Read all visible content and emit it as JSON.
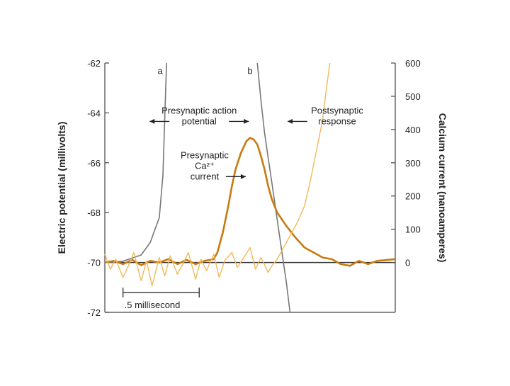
{
  "chart_data": {
    "type": "line",
    "left_axis": {
      "label": "Electric potential (millivolts)",
      "ylim": [
        -72,
        -62
      ],
      "ticks": [
        "-62",
        "-64",
        "-66",
        "-68",
        "-70",
        "-72"
      ]
    },
    "right_axis": {
      "label": "Calcium current (nanoamperes)",
      "ylim": [
        -150,
        600
      ],
      "ticks": [
        "600",
        "500",
        "400",
        "300",
        "200",
        "100",
        "0"
      ]
    },
    "xlim": [
      0,
      1.6
    ],
    "grid": false,
    "scale_bar": {
      "label": ".5 millisecond",
      "x_start": 0.1,
      "x_end": 0.52
    },
    "series": [
      {
        "name": "",
        "axis": "left",
        "color": "#777777",
        "x": [
          0.0,
          0.1,
          0.2,
          0.25,
          0.3,
          0.32,
          0.34
        ],
        "y": [
          -70.0,
          -69.95,
          -69.7,
          -69.2,
          -68.2,
          -66.5,
          -62.0
        ]
      },
      {
        "name": "",
        "axis": "left",
        "color": "#777777",
        "x": [
          0.84,
          0.86,
          0.88,
          0.9,
          0.92,
          0.94,
          0.96,
          0.98,
          1.0,
          1.02
        ],
        "y": [
          -62.0,
          -63.5,
          -64.8,
          -65.8,
          -66.8,
          -67.8,
          -68.8,
          -69.8,
          -70.8,
          -72.0
        ]
      },
      {
        "name": "",
        "axis": "right",
        "color": "#c87a10",
        "x": [
          0.0,
          0.05,
          0.1,
          0.15,
          0.2,
          0.25,
          0.3,
          0.35,
          0.4,
          0.45,
          0.5,
          0.55,
          0.6,
          0.62,
          0.65,
          0.68,
          0.7,
          0.72,
          0.75,
          0.78,
          0.8,
          0.82,
          0.84,
          0.86,
          0.88,
          0.9,
          0.92,
          0.95,
          1.0,
          1.05,
          1.1,
          1.15,
          1.2,
          1.25,
          1.3,
          1.35,
          1.4,
          1.45,
          1.5,
          1.6
        ],
        "y": [
          0,
          5,
          -5,
          8,
          -8,
          5,
          0,
          10,
          -5,
          8,
          -5,
          5,
          10,
          30,
          90,
          170,
          230,
          280,
          330,
          365,
          375,
          370,
          355,
          320,
          280,
          230,
          190,
          150,
          110,
          75,
          45,
          30,
          15,
          10,
          -5,
          -10,
          5,
          -5,
          5,
          10
        ]
      },
      {
        "name": "",
        "axis": "right",
        "color": "#f0b95a",
        "x": [
          0.0,
          0.03,
          0.06,
          0.1,
          0.13,
          0.16,
          0.2,
          0.23,
          0.26,
          0.3,
          0.33,
          0.36,
          0.4,
          0.43,
          0.46,
          0.5,
          0.53,
          0.56,
          0.6,
          0.63,
          0.66,
          0.7,
          0.73,
          0.76,
          0.8,
          0.83,
          0.86,
          0.9,
          0.92,
          0.95,
          0.98,
          1.0,
          1.03,
          1.06,
          1.1,
          1.13,
          1.16,
          1.2,
          1.22,
          1.24
        ],
        "y": [
          25,
          -20,
          10,
          -45,
          -10,
          30,
          -55,
          5,
          -70,
          15,
          -40,
          20,
          -35,
          -5,
          30,
          -50,
          10,
          -25,
          25,
          -45,
          5,
          30,
          -15,
          10,
          45,
          -20,
          15,
          -30,
          -10,
          10,
          40,
          60,
          90,
          120,
          170,
          240,
          320,
          430,
          520,
          600
        ]
      }
    ],
    "annotations": [
      {
        "text": "a",
        "x": 0.305,
        "y": -62.3,
        "axis": "left"
      },
      {
        "text": "b",
        "x": 0.8,
        "y": -62.3,
        "axis": "left"
      },
      {
        "lines": [
          "Presynaptic action",
          "potential"
        ],
        "x": 0.52,
        "y": -64.1,
        "axis": "left",
        "arrows": [
          "left",
          "right"
        ]
      },
      {
        "lines": [
          "Postsynaptic",
          "response"
        ],
        "x": 1.28,
        "y": -64.1,
        "axis": "left",
        "arrows": [
          "left"
        ]
      },
      {
        "lines": [
          "Presynaptic",
          "Ca²⁺",
          "current"
        ],
        "x": 0.55,
        "y": -66.1,
        "axis": "left",
        "arrows": [
          "right"
        ]
      }
    ]
  }
}
